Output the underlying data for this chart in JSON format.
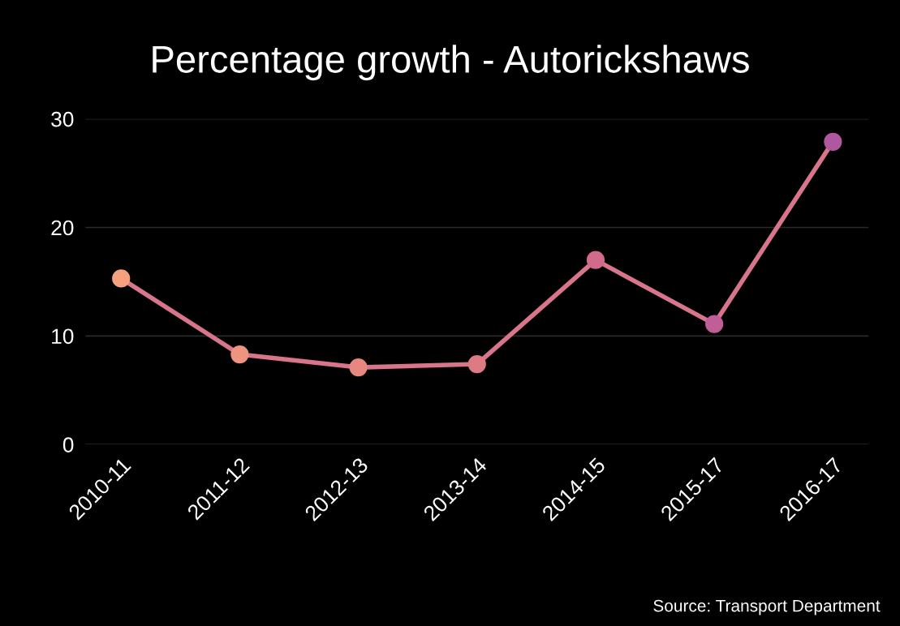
{
  "chart_data": {
    "type": "line",
    "title": "Percentage growth - Autorickshaws",
    "categories": [
      "2010-11",
      "2011-12",
      "2012-13",
      "2013-14",
      "2014-15",
      "2015-17",
      "2016-17"
    ],
    "series": [
      {
        "color": "#d8758a",
        "colors": [
          "#f5a07e",
          "#ee9480",
          "#e8877f",
          "#de7a84",
          "#d06b8c",
          "#bf5e97",
          "#b0589f"
        ],
        "values": [
          15.3,
          8.3,
          7.1,
          7.4,
          17.0,
          11.1,
          27.9
        ]
      }
    ],
    "ylim": [
      0,
      30
    ],
    "yticks": [
      0,
      10,
      20,
      30
    ],
    "grid": "y",
    "marker": "circle",
    "line_style": "solid",
    "annotations": [
      "Source: Transport Department"
    ]
  }
}
